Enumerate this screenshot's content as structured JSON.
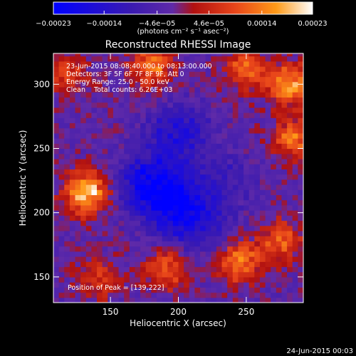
{
  "chart_data": {
    "type": "heatmap",
    "title": "Reconstructed RHESSI Image",
    "xlabel": "Heliocentric X (arcsec)",
    "ylabel": "Heliocentric Y (arcsec)",
    "xlim": [
      108,
      292
    ],
    "ylim": [
      130,
      324
    ],
    "xticks": [
      150,
      200,
      250
    ],
    "yticks": [
      150,
      200,
      250,
      300
    ],
    "colorbar": {
      "range": [
        -0.00023,
        0.00023
      ],
      "tick_values": [
        -0.00023,
        -0.00014,
        -4.6e-05,
        4.6e-05,
        0.00014,
        0.00023
      ],
      "tick_labels": [
        "−0.00023",
        "−0.00014",
        "−4.6e−05",
        "4.6e−05",
        "0.00014",
        "0.00023"
      ],
      "unit_label": "(photons cm⁻² s⁻¹ asec⁻²)",
      "colors": [
        "#0000ff",
        "#3a1ab0",
        "#5f2aa8",
        "#b01010",
        "#e8451a",
        "#ff9a18",
        "#ffffff"
      ]
    },
    "annotations": [
      "23-Jun-2015 08:08:40.000 to 08:13:00.000",
      "Detectors: 3F 5F 6F 7F 8F 9F, Att 0",
      "Energy Range: 25.0 - 50.0 keV",
      "Clean    Total counts: 6.26E+03",
      "Position of Peak = [139,222]"
    ],
    "peak_position": [
      139,
      222
    ],
    "bright_sources": [
      {
        "x": 132,
        "y": 216,
        "value": 0.00023
      },
      {
        "x": 180,
        "y": 315,
        "value": 0.00016
      },
      {
        "x": 250,
        "y": 312,
        "value": 0.00014
      },
      {
        "x": 283,
        "y": 300,
        "value": 0.0002
      },
      {
        "x": 285,
        "y": 258,
        "value": 0.00015
      },
      {
        "x": 192,
        "y": 157,
        "value": 0.00013
      },
      {
        "x": 245,
        "y": 162,
        "value": 0.00016
      },
      {
        "x": 275,
        "y": 178,
        "value": 0.00013
      },
      {
        "x": 140,
        "y": 148,
        "value": 9e-05
      },
      {
        "x": 118,
        "y": 310,
        "value": 0.0001
      }
    ],
    "dim_regions": [
      {
        "x": 200,
        "y": 262,
        "value": -0.00012
      },
      {
        "x": 180,
        "y": 222,
        "value": -0.00018
      },
      {
        "x": 200,
        "y": 204,
        "value": -0.00014
      },
      {
        "x": 215,
        "y": 190,
        "value": -8e-05
      },
      {
        "x": 235,
        "y": 225,
        "value": -6e-05
      }
    ]
  },
  "footer": {
    "date": "24-Jun-2015 00:03"
  }
}
